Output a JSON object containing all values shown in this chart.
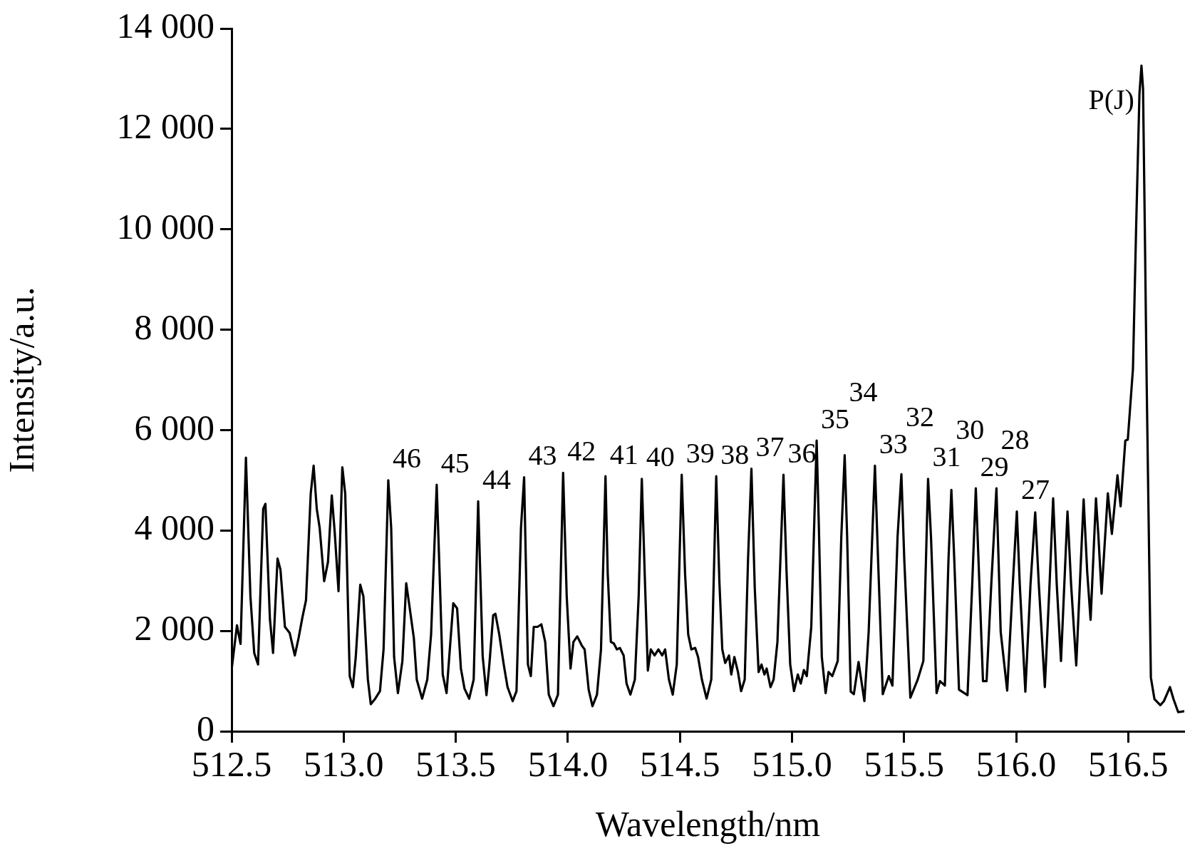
{
  "chart_data": {
    "type": "line",
    "xlabel": "Wavelength/nm",
    "ylabel": "Intensity/a.u.",
    "color": "#000000",
    "grid": false,
    "legend": false,
    "marker": "none",
    "line_style": "solid",
    "xlim": [
      512.5,
      516.75
    ],
    "xticks": [
      512.5,
      {
        "value": 513,
        "label": "513.0"
      },
      513.5,
      {
        "value": 514,
        "label": "514.0"
      },
      514.5,
      {
        "value": 515,
        "label": "515.0"
      },
      515.5,
      {
        "value": 516,
        "label": "516.0"
      },
      516.5
    ],
    "ylim": [
      0,
      14000
    ],
    "yticks": [
      0,
      {
        "value": 2000,
        "label": "2 000"
      },
      {
        "value": 4000,
        "label": "4 000"
      },
      {
        "value": 6000,
        "label": "6 000"
      },
      {
        "value": 8000,
        "label": "8 000"
      },
      {
        "value": 10000,
        "label": "10 000"
      },
      {
        "value": 12000,
        "label": "12 000"
      },
      {
        "value": 14000,
        "label": "14 000"
      }
    ],
    "x": [
      512.5,
      512.524,
      512.54,
      512.564,
      512.584,
      512.601,
      512.618,
      512.641,
      512.651,
      512.671,
      512.685,
      512.705,
      512.718,
      512.738,
      512.759,
      512.782,
      512.799,
      512.816,
      512.832,
      512.853,
      512.866,
      512.88,
      512.893,
      512.913,
      512.93,
      512.947,
      512.96,
      512.977,
      512.994,
      513.007,
      513.027,
      513.041,
      513.054,
      513.074,
      513.088,
      513.108,
      513.121,
      513.141,
      513.162,
      513.178,
      513.199,
      513.212,
      513.225,
      513.242,
      513.262,
      513.279,
      513.292,
      513.313,
      513.326,
      513.35,
      513.373,
      513.39,
      513.415,
      513.428,
      513.442,
      513.459,
      513.476,
      513.489,
      513.506,
      513.523,
      513.539,
      513.56,
      513.58,
      513.6,
      513.62,
      513.637,
      513.65,
      513.667,
      513.677,
      513.694,
      513.714,
      513.731,
      513.754,
      513.771,
      513.791,
      513.805,
      513.822,
      513.835,
      513.848,
      513.865,
      513.882,
      513.899,
      513.915,
      513.936,
      513.956,
      513.979,
      513.995,
      514.012,
      514.025,
      514.042,
      514.062,
      514.075,
      514.093,
      514.11,
      514.13,
      514.148,
      514.168,
      514.178,
      514.192,
      514.205,
      514.219,
      514.232,
      514.249,
      514.262,
      514.279,
      514.299,
      514.316,
      514.33,
      514.344,
      514.357,
      514.37,
      514.387,
      514.404,
      514.421,
      514.434,
      514.451,
      514.468,
      514.486,
      514.508,
      514.523,
      514.537,
      514.551,
      514.568,
      514.581,
      514.598,
      514.619,
      514.64,
      514.662,
      514.676,
      514.689,
      514.702,
      514.719,
      514.729,
      514.743,
      514.759,
      514.773,
      514.789,
      514.804,
      514.819,
      514.834,
      514.851,
      514.864,
      514.877,
      514.887,
      514.904,
      514.918,
      514.935,
      514.962,
      514.976,
      514.992,
      515.009,
      515.026,
      515.039,
      515.053,
      515.066,
      515.086,
      515.1,
      515.11,
      515.12,
      515.133,
      515.15,
      515.163,
      515.18,
      515.204,
      515.22,
      515.235,
      515.246,
      515.262,
      515.276,
      515.297,
      515.323,
      515.342,
      515.37,
      515.384,
      515.405,
      515.432,
      515.448,
      515.471,
      515.488,
      515.501,
      515.528,
      515.56,
      515.586,
      515.607,
      515.62,
      515.645,
      515.66,
      515.682,
      515.698,
      515.711,
      515.724,
      515.745,
      515.783,
      515.804,
      515.82,
      515.836,
      515.852,
      515.868,
      515.889,
      515.912,
      515.931,
      515.96,
      515.985,
      516.003,
      516.016,
      516.041,
      516.064,
      516.085,
      516.101,
      516.128,
      516.149,
      516.165,
      516.181,
      516.2,
      516.229,
      516.245,
      516.268,
      516.301,
      516.317,
      516.332,
      516.356,
      516.367,
      516.381,
      516.409,
      516.427,
      516.452,
      516.466,
      516.487,
      516.498,
      516.521,
      516.535,
      516.55,
      516.559,
      516.566,
      516.574,
      516.582,
      516.601,
      516.617,
      516.643,
      516.659,
      516.686,
      516.702,
      516.723,
      516.75
    ],
    "values": [
      1220,
      2110,
      1740,
      5450,
      2690,
      1560,
      1330,
      4430,
      4530,
      2240,
      1560,
      3440,
      3220,
      2080,
      1960,
      1510,
      1860,
      2270,
      2610,
      4730,
      5290,
      4430,
      4050,
      2990,
      3370,
      4700,
      3970,
      2790,
      5260,
      4730,
      1100,
      880,
      1480,
      2920,
      2690,
      1030,
      540,
      650,
      800,
      1630,
      5000,
      4050,
      1480,
      760,
      1400,
      2950,
      2540,
      1860,
      1030,
      650,
      1030,
      1930,
      4910,
      3140,
      1130,
      760,
      1780,
      2550,
      2450,
      1250,
      850,
      650,
      1030,
      4580,
      1500,
      720,
      1330,
      2310,
      2340,
      1930,
      1330,
      880,
      600,
      800,
      4050,
      5060,
      1330,
      1100,
      2080,
      2080,
      2130,
      1780,
      730,
      500,
      730,
      5150,
      2690,
      1250,
      1780,
      1890,
      1710,
      1630,
      830,
      500,
      730,
      1630,
      5080,
      3140,
      1780,
      1750,
      1630,
      1660,
      1510,
      950,
      730,
      1030,
      2690,
      5030,
      2990,
      1210,
      1630,
      1510,
      1630,
      1510,
      1630,
      1030,
      730,
      1330,
      5110,
      3140,
      1930,
      1630,
      1660,
      1480,
      1030,
      650,
      1030,
      5080,
      2990,
      1630,
      1360,
      1510,
      1130,
      1480,
      1180,
      800,
      1030,
      3440,
      5230,
      2840,
      1180,
      1330,
      1130,
      1250,
      880,
      1030,
      1780,
      5110,
      3140,
      1330,
      800,
      1130,
      950,
      1220,
      1100,
      2080,
      4270,
      5790,
      4050,
      1480,
      760,
      1180,
      1100,
      1400,
      3880,
      5500,
      3880,
      790,
      740,
      1380,
      600,
      1980,
      5290,
      3410,
      740,
      1100,
      910,
      3880,
      5120,
      3410,
      670,
      1020,
      1400,
      5030,
      3880,
      760,
      1000,
      910,
      3410,
      4810,
      3410,
      830,
      720,
      2930,
      4840,
      2930,
      1000,
      1000,
      2930,
      4840,
      1980,
      810,
      2930,
      4380,
      2930,
      790,
      2930,
      4360,
      2930,
      880,
      2930,
      4640,
      2930,
      1400,
      4380,
      2930,
      1310,
      4620,
      3170,
      2220,
      4640,
      3880,
      2740,
      4740,
      3930,
      5100,
      4480,
      5790,
      5810,
      7220,
      10000,
      12700,
      13260,
      12800,
      10000,
      7000,
      1070,
      640,
      520,
      600,
      880,
      640,
      380,
      400
    ],
    "annotations": [
      {
        "text": "46",
        "x": 513.199,
        "y": 5000
      },
      {
        "text": "45",
        "x": 513.415,
        "y": 4910
      },
      {
        "text": "44",
        "x": 513.6,
        "y": 4580
      },
      {
        "text": "43",
        "x": 513.805,
        "y": 5060
      },
      {
        "text": "42",
        "x": 513.979,
        "y": 5150
      },
      {
        "text": "41",
        "x": 514.168,
        "y": 5080
      },
      {
        "text": "40",
        "x": 514.33,
        "y": 5030
      },
      {
        "text": "39",
        "x": 514.508,
        "y": 5110
      },
      {
        "text": "38",
        "x": 514.662,
        "y": 5080
      },
      {
        "text": "37",
        "x": 514.819,
        "y": 5230
      },
      {
        "text": "36",
        "x": 514.962,
        "y": 5110
      },
      {
        "text": "35",
        "x": 515.11,
        "y": 5790
      },
      {
        "text": "34",
        "x": 515.235,
        "y": 5500
      },
      {
        "text": "33",
        "x": 515.37,
        "y": 5290
      },
      {
        "text": "32",
        "x": 515.488,
        "y": 5120
      },
      {
        "text": "31",
        "x": 515.607,
        "y": 5030
      },
      {
        "text": "30",
        "x": 515.711,
        "y": 4810
      },
      {
        "text": "29",
        "x": 515.82,
        "y": 4840
      },
      {
        "text": "28",
        "x": 515.912,
        "y": 4840
      },
      {
        "text": "27",
        "x": 516.003,
        "y": 4380
      },
      {
        "text": "P(J)",
        "x": 516.559,
        "y": 13260
      }
    ]
  }
}
